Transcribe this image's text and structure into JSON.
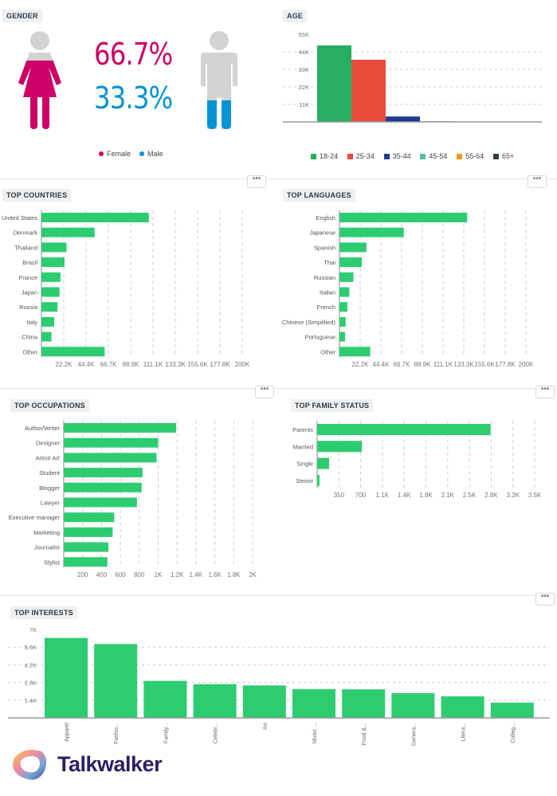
{
  "colors": {
    "bar": "#2ecc71",
    "female": "#cc0066",
    "male": "#0094d4",
    "figure_grey": "#d3d3d3",
    "axis_text": "#777777",
    "brand": "#2b1f63"
  },
  "more_button_label": "•••",
  "brand": {
    "name": "Talkwalker",
    "icon": "talkwalker-logo-icon"
  },
  "chart_data": [
    {
      "id": "gender",
      "type": "pie",
      "title": "GENDER",
      "categories": [
        "Female",
        "Male"
      ],
      "values": [
        66.7,
        33.3
      ],
      "labels": [
        "66.7%",
        "33.3%"
      ],
      "colors": [
        "#cc0066",
        "#0094d4"
      ],
      "legend": "bottom"
    },
    {
      "id": "age",
      "type": "bar",
      "title": "AGE",
      "categories": [
        "18-24",
        "25-34",
        "35-44",
        "45-54",
        "55-64",
        "65+"
      ],
      "values": [
        48000,
        39000,
        3400,
        400,
        0,
        0
      ],
      "colors": [
        "#27ae60",
        "#e74c3c",
        "#1f3a93",
        "#52c08e",
        "#f39c12",
        "#2c3e50"
      ],
      "yticks": [
        "11K",
        "22K",
        "33K",
        "44K",
        "55K"
      ],
      "ylim": [
        0,
        55000
      ],
      "grid": true,
      "legend": "bottom"
    },
    {
      "id": "countries",
      "type": "bar",
      "orientation": "horizontal",
      "title": "TOP COUNTRIES",
      "categories": [
        "United States",
        "Denmark",
        "Thailand",
        "Brazil",
        "France",
        "Japan",
        "Russia",
        "Italy",
        "China",
        "Other"
      ],
      "values": [
        107000,
        53000,
        25000,
        23000,
        19000,
        18000,
        16000,
        12700,
        10000,
        63000
      ],
      "xticks": [
        "22.2K",
        "44.4K",
        "66.7K",
        "88.9K",
        "111.1K",
        "133.3K",
        "155.6K",
        "177.8K",
        "200K"
      ],
      "xlim": [
        0,
        200000
      ],
      "grid": true
    },
    {
      "id": "languages",
      "type": "bar",
      "orientation": "horizontal",
      "title": "TOP LANGUAGES",
      "categories": [
        "English",
        "Japanese",
        "Spanish",
        "Thai",
        "Russian",
        "Italian",
        "French",
        "Chinese (Simplified)",
        "Portuguese",
        "Other"
      ],
      "values": [
        137000,
        69000,
        29000,
        24000,
        15000,
        10600,
        8500,
        6600,
        6000,
        33000
      ],
      "xticks": [
        "22.2K",
        "44.4K",
        "66.7K",
        "88.9K",
        "111.1K",
        "133.3K",
        "155.6K",
        "177.8K",
        "200K"
      ],
      "xlim": [
        0,
        200000
      ],
      "grid": true
    },
    {
      "id": "occupations",
      "type": "bar",
      "orientation": "horizontal",
      "title": "TOP OCCUPATIONS",
      "categories": [
        "Author/Writer",
        "Designer",
        "Artist/ Art",
        "Student",
        "Blogger",
        "Lawyer",
        "Executive manager",
        "Marketing",
        "Journalist",
        "Stylist"
      ],
      "values": [
        1190,
        1000,
        983,
        834,
        825,
        775,
        535,
        518,
        473,
        462
      ],
      "xticks": [
        "200",
        "400",
        "600",
        "800",
        "1K",
        "1.2K",
        "1.4K",
        "1.6K",
        "1.8K",
        "2K"
      ],
      "xlim": [
        0,
        2000
      ],
      "grid": true
    },
    {
      "id": "family",
      "type": "bar",
      "orientation": "horizontal",
      "title": "TOP FAMILY STATUS",
      "categories": [
        "Parents",
        "Married",
        "Single",
        "Senior"
      ],
      "values": [
        2790,
        721,
        192,
        38
      ],
      "xticks": [
        "350",
        "700",
        "1.1K",
        "1.4K",
        "1.8K",
        "2.1K",
        "2.5K",
        "2.8K",
        "3.2K",
        "3.5K"
      ],
      "xlim": [
        0,
        3500
      ],
      "grid": true
    },
    {
      "id": "interests",
      "type": "bar",
      "title": "TOP INTERESTS",
      "categories": [
        "Apparel",
        "Fashio...",
        "Family...",
        "Celebr...",
        "Art",
        "Music ...",
        "Food &...",
        "Genera...",
        "Litera...",
        "Colleg..."
      ],
      "values": [
        6330,
        5850,
        2930,
        2670,
        2570,
        2280,
        2260,
        1960,
        1710,
        1210
      ],
      "yticks": [
        "1.4K",
        "2.8K",
        "4.2K",
        "5.6K",
        "7K"
      ],
      "ylim": [
        0,
        7000
      ],
      "grid": true
    }
  ]
}
